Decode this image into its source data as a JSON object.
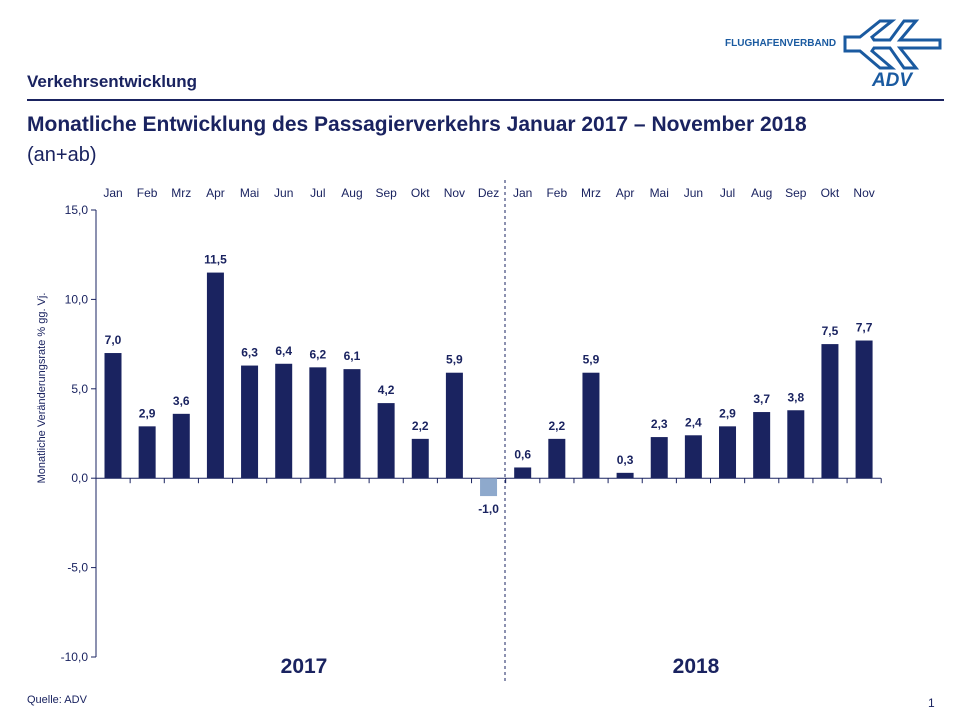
{
  "header": {
    "section": "Verkehrsentwicklung",
    "title": "Monatliche Entwicklung des Passagierverkehrs  Januar 2017 – November 2018",
    "subtitle": "(an+ab)",
    "logo_text": "FLUGHAFENVERBAND",
    "logo_mark": "ADV"
  },
  "footer": {
    "source": "Quelle: ADV",
    "page": "1"
  },
  "colors": {
    "bar": "#1a2360",
    "negative": "#8ea9cc",
    "text": "#1a2360"
  },
  "chart_data": {
    "type": "bar",
    "title": "Monatliche Entwicklung des Passagierverkehrs Januar 2017 – November 2018",
    "ylabel": "Monatliche Veränderungsrate % gg. Vj.",
    "ylim": [
      -10,
      15
    ],
    "yticks": [
      "15,0",
      "10,0",
      "5,0",
      "0,0",
      "-5,0",
      "-10,0"
    ],
    "ytick_values": [
      15,
      10,
      5,
      0,
      -5,
      -10
    ],
    "groups": [
      "2017",
      "2018"
    ],
    "categories": [
      "Jan",
      "Feb",
      "Mrz",
      "Apr",
      "Mai",
      "Jun",
      "Jul",
      "Aug",
      "Sep",
      "Okt",
      "Nov",
      "Dez",
      "Jan",
      "Feb",
      "Mrz",
      "Apr",
      "Mai",
      "Jun",
      "Jul",
      "Aug",
      "Sep",
      "Okt",
      "Nov"
    ],
    "values": [
      7.0,
      2.9,
      3.6,
      11.5,
      6.3,
      6.4,
      6.2,
      6.1,
      4.2,
      2.2,
      5.9,
      -1.0,
      0.6,
      2.2,
      5.9,
      0.3,
      2.3,
      2.4,
      2.9,
      3.7,
      3.8,
      7.5,
      7.7
    ],
    "labels": [
      "7,0",
      "2,9",
      "3,6",
      "11,5",
      "6,3",
      "6,4",
      "6,2",
      "6,1",
      "4,2",
      "2,2",
      "5,9",
      "-1,0",
      "0,6",
      "2,2",
      "5,9",
      "0,3",
      "2,3",
      "2,4",
      "2,9",
      "3,7",
      "3,8",
      "7,5",
      "7,7"
    ]
  }
}
